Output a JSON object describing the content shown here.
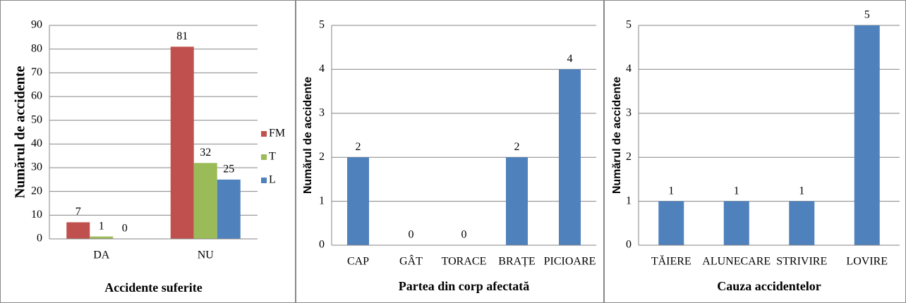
{
  "chart_data": [
    {
      "type": "grouped-bar",
      "ylabel": "Numărul de accidente",
      "xlabel": "Accidente suferite",
      "categories": [
        "DA",
        "NU"
      ],
      "series": [
        {
          "name": "FM",
          "color": "#c0504d",
          "values": [
            7,
            81
          ]
        },
        {
          "name": "T",
          "color": "#9bbb59",
          "values": [
            1,
            32
          ]
        },
        {
          "name": "L",
          "color": "#4f81bd",
          "values": [
            0,
            25
          ]
        }
      ],
      "ylim": [
        0,
        90
      ],
      "yticks": [
        0,
        10,
        20,
        30,
        40,
        50,
        60,
        70,
        80,
        90
      ],
      "grid": true,
      "legend": "right"
    },
    {
      "type": "bar",
      "ylabel": "Numărul de accidente",
      "xlabel": "Partea din corp afectată",
      "categories": [
        "CAP",
        "GÂT",
        "TORACE",
        "BRAȚE",
        "PICIOARE"
      ],
      "values": [
        2,
        0,
        0,
        2,
        4
      ],
      "color": "#4f81bd",
      "ylim": [
        0,
        5
      ],
      "yticks": [
        0,
        1,
        2,
        3,
        4,
        5
      ],
      "grid": true
    },
    {
      "type": "bar",
      "ylabel": "Numărul de accidente",
      "xlabel": "Cauza accidentelor",
      "categories": [
        "TĂIERE",
        "ALUNECARE",
        "STRIVIRE",
        "LOVIRE"
      ],
      "values": [
        1,
        1,
        1,
        5
      ],
      "color": "#4f81bd",
      "ylim": [
        0,
        5
      ],
      "yticks": [
        0,
        1,
        2,
        3,
        4,
        5
      ],
      "grid": true
    }
  ]
}
